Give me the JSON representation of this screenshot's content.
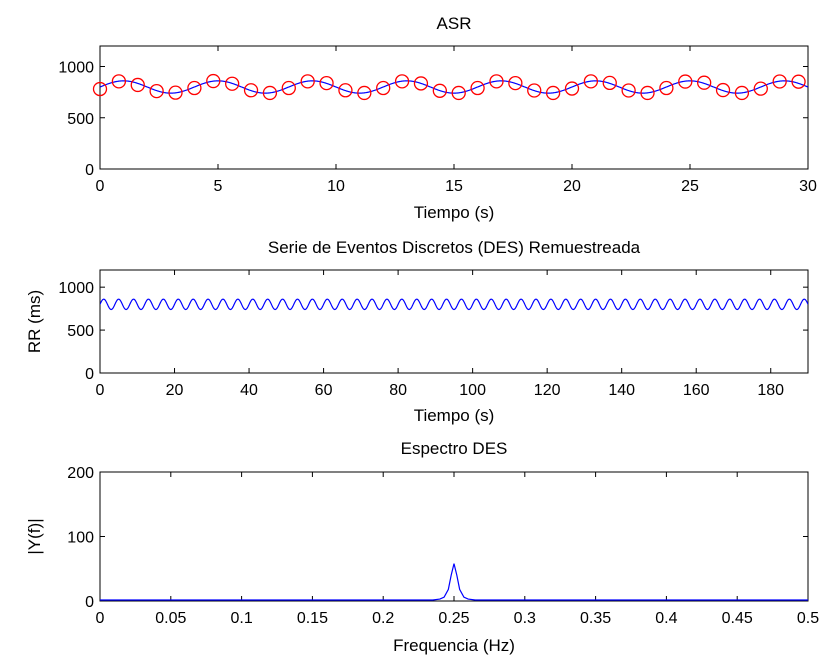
{
  "chart_data": [
    {
      "type": "line",
      "title": "ASR",
      "xlabel": "Tiempo (s)",
      "ylabel": "",
      "xlim": [
        0,
        30
      ],
      "ylim": [
        0,
        1200
      ],
      "xticks": [
        0,
        5,
        10,
        15,
        20,
        25,
        30
      ],
      "yticks": [
        0,
        500,
        1000
      ],
      "grid": false,
      "series": [
        {
          "kind": "line",
          "color": "#0000ff",
          "model": {
            "mean": 800,
            "amplitude": 60,
            "frequency_hz": 0.25,
            "phase_rad": 0
          },
          "x_range": [
            0,
            30
          ]
        },
        {
          "kind": "markers",
          "marker": "circle",
          "color": "#ff0000",
          "x": [
            0.0,
            0.8,
            1.6,
            2.4,
            3.2,
            4.0,
            4.8,
            5.6,
            6.4,
            7.2,
            8.0,
            8.8,
            9.6,
            10.4,
            11.2,
            12.0,
            12.8,
            13.6,
            14.4,
            15.2,
            16.0,
            16.8,
            17.6,
            18.4,
            19.2,
            20.0,
            20.8,
            21.6,
            22.4,
            23.2,
            24.0,
            24.8,
            25.6,
            26.4,
            27.2,
            28.0,
            28.8,
            29.6
          ],
          "y": [
            780,
            855,
            820,
            760,
            745,
            790,
            858,
            832,
            768,
            742,
            790,
            855,
            838,
            768,
            742,
            790,
            855,
            835,
            763,
            742,
            790,
            855,
            838,
            766,
            742,
            785,
            855,
            840,
            766,
            742,
            790,
            853,
            842,
            770,
            742,
            784,
            854,
            852
          ]
        }
      ]
    },
    {
      "type": "line",
      "title": "Serie de Eventos Discretos (DES) Remuestreada",
      "xlabel": "Tiempo (s)",
      "ylabel": "RR (ms)",
      "xlim": [
        0,
        190
      ],
      "ylim": [
        0,
        1200
      ],
      "xticks": [
        0,
        20,
        40,
        60,
        80,
        100,
        120,
        140,
        160,
        180
      ],
      "yticks": [
        0,
        500,
        1000
      ],
      "grid": false,
      "series": [
        {
          "kind": "line",
          "color": "#0000ff",
          "model": {
            "mean": 800,
            "amplitude": 60,
            "frequency_hz": 0.25,
            "phase_rad": 0
          },
          "x_range": [
            0,
            190
          ]
        }
      ]
    },
    {
      "type": "line",
      "title": "Espectro DES",
      "xlabel": "Frequencia (Hz)",
      "ylabel": "|Y(f)|",
      "xlim": [
        0,
        0.5
      ],
      "ylim": [
        0,
        200
      ],
      "xticks": [
        0,
        0.05,
        0.1,
        0.15,
        0.2,
        0.25,
        0.3,
        0.35,
        0.4,
        0.45,
        0.5
      ],
      "yticks": [
        0,
        100,
        200
      ],
      "grid": false,
      "series": [
        {
          "kind": "line",
          "color": "#0000ff",
          "x": [
            0,
            0.235,
            0.24,
            0.243,
            0.246,
            0.248,
            0.25,
            0.252,
            0.254,
            0.257,
            0.26,
            0.265,
            0.5
          ],
          "y": [
            1.5,
            1.5,
            3,
            6,
            18,
            40,
            58,
            40,
            18,
            6,
            3,
            1.5,
            1.5
          ]
        }
      ]
    }
  ]
}
